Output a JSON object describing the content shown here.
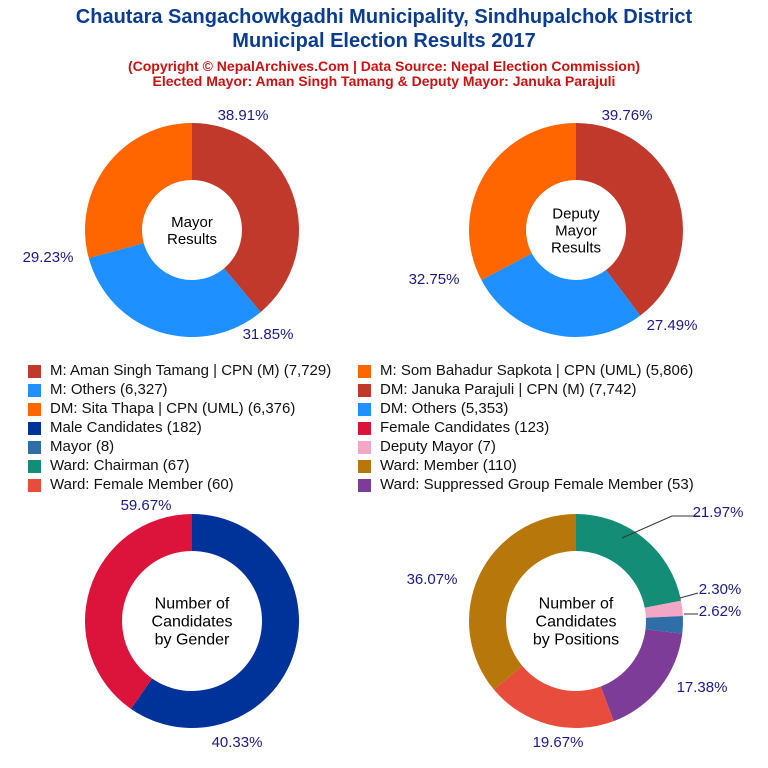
{
  "header": {
    "title_line1": "Chautara Sangachowkgadhi Municipality, Sindhupalchok District",
    "title_line2": "Municipal Election Results 2017",
    "subtitle_line1": "(Copyright © NepalArchives.Com | Data Source: Nepal Election Commission)",
    "subtitle_line2": "Elected Mayor: Aman Singh Tamang & Deputy Mayor: Januka Parajuli"
  },
  "legend": [
    {
      "label": "M: Aman Singh Tamang | CPN (M) (7,729)",
      "color": "#c0392b"
    },
    {
      "label": "M: Som Bahadur Sapkota | CPN (UML) (5,806)",
      "color": "#ff6600"
    },
    {
      "label": "M: Others (6,327)",
      "color": "#1e90ff"
    },
    {
      "label": "DM: Januka Parajuli | CPN (M) (7,742)",
      "color": "#c0392b"
    },
    {
      "label": "DM: Sita Thapa | CPN (UML) (6,376)",
      "color": "#ff6600"
    },
    {
      "label": "DM: Others (5,353)",
      "color": "#1e90ff"
    },
    {
      "label": "Male Candidates (182)",
      "color": "#003399"
    },
    {
      "label": "Female Candidates (123)",
      "color": "#dc143c"
    },
    {
      "label": "Mayor (8)",
      "color": "#2e6fa8"
    },
    {
      "label": "Deputy Mayor (7)",
      "color": "#f4a6c6"
    },
    {
      "label": "Ward: Chairman (67)",
      "color": "#138d75"
    },
    {
      "label": "Ward: Member (110)",
      "color": "#b8770b"
    },
    {
      "label": "Ward: Female Member (60)",
      "color": "#e74c3c"
    },
    {
      "label": "Ward: Suppressed Group Female Member (53)",
      "color": "#7d3c98"
    }
  ],
  "chart_data": [
    {
      "type": "pie",
      "title": "Mayor Results",
      "center_lines": [
        "Mayor",
        "Results"
      ],
      "slices": [
        {
          "name": "M: Aman Singh Tamang | CPN (M)",
          "value": 7729,
          "percent_label": "38.91%",
          "color": "#c0392b"
        },
        {
          "name": "M: Others",
          "value": 6327,
          "percent_label": "31.85%",
          "color": "#1e90ff"
        },
        {
          "name": "M: Som Bahadur Sapkota | CPN (UML)",
          "value": 5806,
          "percent_label": "29.23%",
          "color": "#ff6600"
        }
      ]
    },
    {
      "type": "pie",
      "title": "Deputy Mayor Results",
      "center_lines": [
        "Deputy",
        "Mayor",
        "Results"
      ],
      "slices": [
        {
          "name": "DM: Januka Parajuli | CPN (M)",
          "value": 7742,
          "percent_label": "39.76%",
          "color": "#c0392b"
        },
        {
          "name": "DM: Others",
          "value": 5353,
          "percent_label": "27.49%",
          "color": "#1e90ff"
        },
        {
          "name": "DM: Sita Thapa | CPN (UML)",
          "value": 6376,
          "percent_label": "32.75%",
          "color": "#ff6600"
        }
      ]
    },
    {
      "type": "pie",
      "title": "Number of Candidates by Gender",
      "center_lines": [
        "Number of",
        "Candidates",
        "by Gender"
      ],
      "slices": [
        {
          "name": "Male Candidates",
          "value": 182,
          "percent_label": "59.67%",
          "color": "#003399"
        },
        {
          "name": "Female Candidates",
          "value": 123,
          "percent_label": "40.33%",
          "color": "#dc143c"
        }
      ]
    },
    {
      "type": "pie",
      "title": "Number of Candidates by Positions",
      "center_lines": [
        "Number of",
        "Candidates",
        "by Positions"
      ],
      "slices": [
        {
          "name": "Ward: Chairman",
          "value": 67,
          "percent_label": "21.97%",
          "color": "#138d75"
        },
        {
          "name": "Deputy Mayor",
          "value": 7,
          "percent_label": "2.30%",
          "color": "#f4a6c6"
        },
        {
          "name": "Mayor",
          "value": 8,
          "percent_label": "2.62%",
          "color": "#2e6fa8"
        },
        {
          "name": "Ward: Suppressed Group Female Member",
          "value": 53,
          "percent_label": "17.38%",
          "color": "#7d3c98"
        },
        {
          "name": "Ward: Female Member",
          "value": 60,
          "percent_label": "19.67%",
          "color": "#e74c3c"
        },
        {
          "name": "Ward: Member",
          "value": 110,
          "percent_label": "36.07%",
          "color": "#b8770b"
        }
      ]
    }
  ]
}
